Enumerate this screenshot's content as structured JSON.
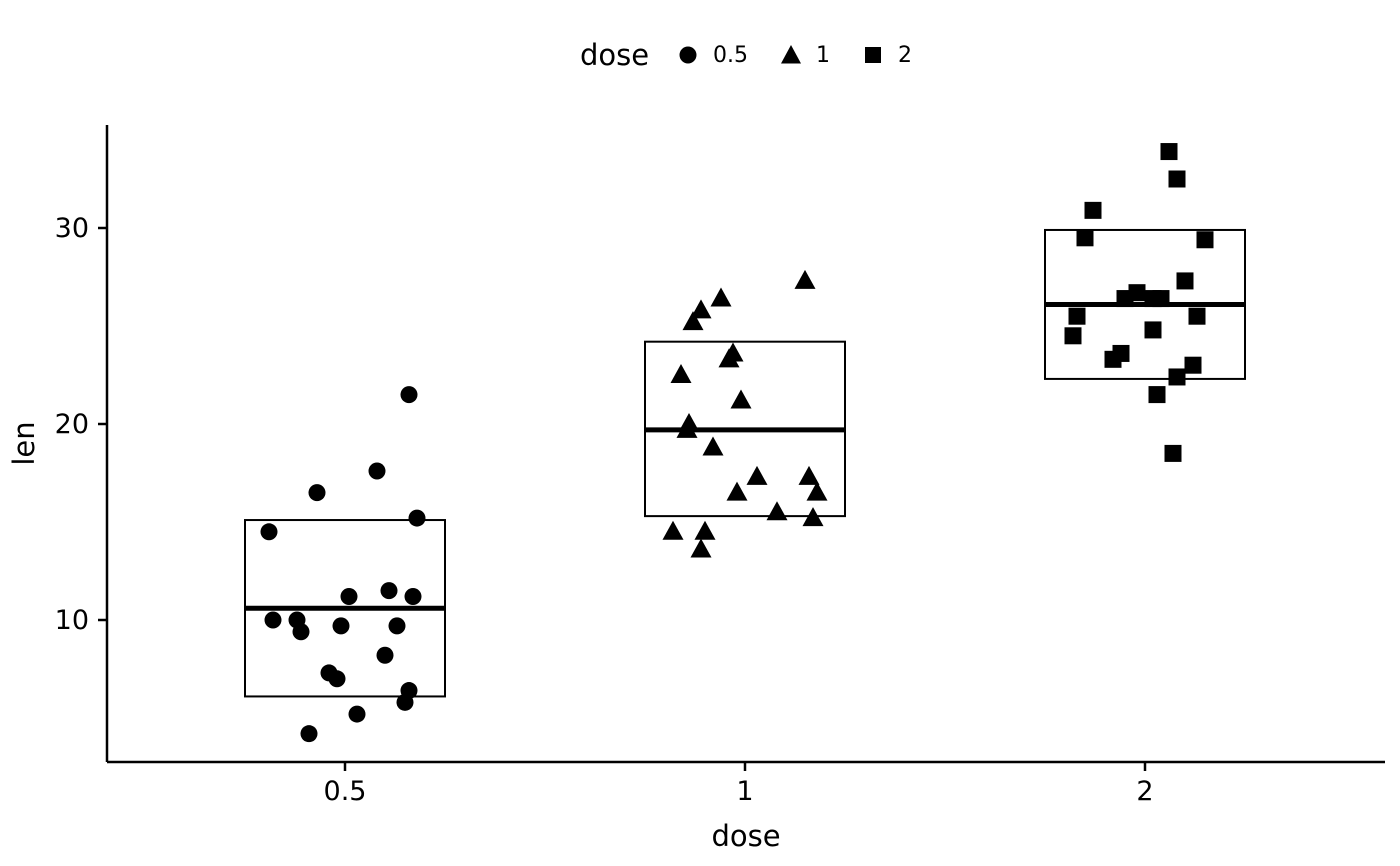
{
  "page": {
    "background": "#ffffff"
  },
  "legend": {
    "title": "dose",
    "items": [
      {
        "label": "0.5",
        "shape": "circle"
      },
      {
        "label": "1",
        "shape": "triangle"
      },
      {
        "label": "2",
        "shape": "square"
      }
    ]
  },
  "chart_data": {
    "type": "scatter",
    "subtype": "jittered-points-with-mean-sd-crossbar",
    "title": "",
    "xlabel": "dose",
    "ylabel": "len",
    "x_categories": [
      "0.5",
      "1",
      "2"
    ],
    "y_ticks": [
      10,
      20,
      30
    ],
    "ylim": [
      2.5,
      35.5
    ],
    "grid": false,
    "legend_position": "top-center",
    "point_color": "#000000",
    "axis_color": "#000000",
    "background_color": "#ffffff",
    "groups": [
      {
        "dose": "0.5",
        "shape": "circle",
        "crossbar": {
          "lower": 6.1,
          "mean": 10.6,
          "upper": 15.1
        },
        "points": [
          [
            -0.09,
            4.2
          ],
          [
            0.03,
            5.2
          ],
          [
            0.15,
            5.8
          ],
          [
            0.16,
            6.4
          ],
          [
            -0.02,
            7.0
          ],
          [
            -0.04,
            7.3
          ],
          [
            0.1,
            8.2
          ],
          [
            -0.11,
            9.4
          ],
          [
            -0.01,
            9.7
          ],
          [
            0.13,
            9.7
          ],
          [
            -0.18,
            10.0
          ],
          [
            -0.12,
            10.0
          ],
          [
            0.01,
            11.2
          ],
          [
            0.17,
            11.2
          ],
          [
            0.11,
            11.5
          ],
          [
            -0.19,
            14.5
          ],
          [
            0.18,
            15.2
          ],
          [
            -0.07,
            16.5
          ],
          [
            0.08,
            17.6
          ],
          [
            0.16,
            21.5
          ]
        ]
      },
      {
        "dose": "1",
        "shape": "triangle",
        "crossbar": {
          "lower": 15.3,
          "mean": 19.7,
          "upper": 24.2
        },
        "points": [
          [
            0.15,
            27.3
          ],
          [
            -0.06,
            26.4
          ],
          [
            -0.11,
            25.8
          ],
          [
            -0.13,
            25.2
          ],
          [
            -0.03,
            23.6
          ],
          [
            -0.04,
            23.3
          ],
          [
            -0.16,
            22.5
          ],
          [
            -0.01,
            21.2
          ],
          [
            -0.14,
            20.0
          ],
          [
            -0.145,
            19.7
          ],
          [
            -0.08,
            18.8
          ],
          [
            0.03,
            17.3
          ],
          [
            0.16,
            17.3
          ],
          [
            -0.02,
            16.5
          ],
          [
            0.18,
            16.5
          ],
          [
            0.08,
            15.5
          ],
          [
            0.17,
            15.2
          ],
          [
            -0.18,
            14.5
          ],
          [
            -0.1,
            14.5
          ],
          [
            -0.11,
            13.6
          ]
        ]
      },
      {
        "dose": "2",
        "shape": "square",
        "crossbar": {
          "lower": 22.3,
          "mean": 26.1,
          "upper": 29.9
        },
        "points": [
          [
            0.06,
            33.9
          ],
          [
            0.08,
            32.5
          ],
          [
            -0.13,
            30.9
          ],
          [
            -0.15,
            29.5
          ],
          [
            0.15,
            29.4
          ],
          [
            0.1,
            27.3
          ],
          [
            -0.02,
            26.7
          ],
          [
            -0.05,
            26.4
          ],
          [
            0.02,
            26.4
          ],
          [
            0.04,
            26.4
          ],
          [
            -0.17,
            25.5
          ],
          [
            0.13,
            25.5
          ],
          [
            0.02,
            24.8
          ],
          [
            -0.18,
            24.5
          ],
          [
            -0.06,
            23.6
          ],
          [
            -0.08,
            23.3
          ],
          [
            0.12,
            23.0
          ],
          [
            0.08,
            22.4
          ],
          [
            0.03,
            21.5
          ],
          [
            0.07,
            18.5
          ]
        ]
      }
    ]
  }
}
